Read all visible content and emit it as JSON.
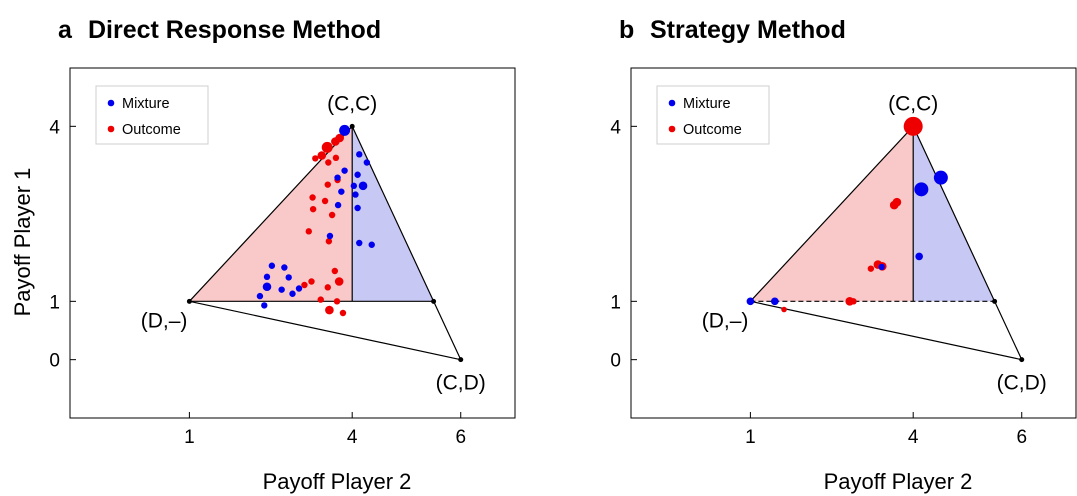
{
  "colors": {
    "mixture": "#0000ee",
    "outcome": "#ee0000",
    "mixture_fill": "#c8c8f4",
    "outcome_fill": "#f9c8c8",
    "frame": "#000000"
  },
  "chart_data": [
    {
      "type": "scatter",
      "panel_letter": "a",
      "title": "Direct Response Method",
      "xlabel": "Payoff Player 2",
      "ylabel": "Payoff Player 1",
      "xticks": [
        "1",
        "4",
        "6"
      ],
      "yticks": [
        "0",
        "1",
        "4"
      ],
      "xlim": [
        -1.2,
        7.0
      ],
      "ylim": [
        -1.0,
        5.0
      ],
      "legend": {
        "position": "top-left",
        "entries": [
          "Mixture",
          "Outcome"
        ]
      },
      "vertices": [
        {
          "label": "(C,C)",
          "x": 4,
          "y": 4
        },
        {
          "label": "(D,–)",
          "x": 1,
          "y": 1
        },
        {
          "label": "(C,D)",
          "x": 6,
          "y": 0
        }
      ],
      "series": [
        {
          "name": "Mixture",
          "points": [
            {
              "x": 3.86,
              "y": 3.93,
              "s": 5.5
            },
            {
              "x": 4.13,
              "y": 3.52,
              "s": 3.2
            },
            {
              "x": 4.27,
              "y": 3.38,
              "s": 3.2
            },
            {
              "x": 3.86,
              "y": 3.24,
              "s": 3.2
            },
            {
              "x": 4.1,
              "y": 3.17,
              "s": 3.2
            },
            {
              "x": 3.73,
              "y": 3.12,
              "s": 3.2
            },
            {
              "x": 4.03,
              "y": 2.98,
              "s": 3.2
            },
            {
              "x": 4.2,
              "y": 2.98,
              "s": 4.3
            },
            {
              "x": 3.8,
              "y": 2.88,
              "s": 3.2
            },
            {
              "x": 4.06,
              "y": 2.83,
              "s": 3.2
            },
            {
              "x": 3.74,
              "y": 2.65,
              "s": 3.2
            },
            {
              "x": 4.1,
              "y": 2.6,
              "s": 3.2
            },
            {
              "x": 3.59,
              "y": 2.12,
              "s": 3.2
            },
            {
              "x": 4.13,
              "y": 2.0,
              "s": 3.2
            },
            {
              "x": 4.36,
              "y": 1.97,
              "s": 3.2
            },
            {
              "x": 2.52,
              "y": 1.61,
              "s": 3.2
            },
            {
              "x": 2.75,
              "y": 1.58,
              "s": 3.2
            },
            {
              "x": 2.43,
              "y": 1.42,
              "s": 3.2
            },
            {
              "x": 2.83,
              "y": 1.41,
              "s": 3.2
            },
            {
              "x": 2.43,
              "y": 1.25,
              "s": 4.3
            },
            {
              "x": 3.02,
              "y": 1.22,
              "s": 3.2
            },
            {
              "x": 2.7,
              "y": 1.2,
              "s": 3.2
            },
            {
              "x": 2.9,
              "y": 1.13,
              "s": 3.2
            },
            {
              "x": 2.3,
              "y": 1.09,
              "s": 3.2
            },
            {
              "x": 2.38,
              "y": 0.93,
              "s": 3.2
            }
          ]
        },
        {
          "name": "Outcome",
          "points": [
            {
              "x": 3.77,
              "y": 3.8,
              "s": 4.3
            },
            {
              "x": 3.69,
              "y": 3.74,
              "s": 4.3
            },
            {
              "x": 3.54,
              "y": 3.64,
              "s": 5.5
            },
            {
              "x": 3.44,
              "y": 3.5,
              "s": 4.3
            },
            {
              "x": 3.7,
              "y": 3.46,
              "s": 3.2
            },
            {
              "x": 3.32,
              "y": 3.45,
              "s": 3.2
            },
            {
              "x": 3.56,
              "y": 3.38,
              "s": 3.2
            },
            {
              "x": 3.73,
              "y": 3.08,
              "s": 3.2
            },
            {
              "x": 3.55,
              "y": 3.0,
              "s": 3.2
            },
            {
              "x": 3.27,
              "y": 2.78,
              "s": 3.2
            },
            {
              "x": 3.5,
              "y": 2.72,
              "s": 3.2
            },
            {
              "x": 3.28,
              "y": 2.58,
              "s": 3.2
            },
            {
              "x": 3.63,
              "y": 2.48,
              "s": 3.2
            },
            {
              "x": 3.2,
              "y": 2.2,
              "s": 3.2
            },
            {
              "x": 3.57,
              "y": 2.03,
              "s": 3.2
            },
            {
              "x": 3.68,
              "y": 1.52,
              "s": 3.2
            },
            {
              "x": 3.25,
              "y": 1.34,
              "s": 3.2
            },
            {
              "x": 3.76,
              "y": 1.34,
              "s": 4.3
            },
            {
              "x": 3.12,
              "y": 1.28,
              "s": 3.2
            },
            {
              "x": 3.55,
              "y": 1.24,
              "s": 3.2
            },
            {
              "x": 3.42,
              "y": 1.03,
              "s": 3.2
            },
            {
              "x": 3.72,
              "y": 1.0,
              "s": 3.2
            },
            {
              "x": 3.58,
              "y": 0.85,
              "s": 4.3
            },
            {
              "x": 3.83,
              "y": 0.8,
              "s": 3.2
            }
          ]
        }
      ]
    },
    {
      "type": "scatter",
      "panel_letter": "b",
      "title": "Strategy Method",
      "xlabel": "Payoff Player 2",
      "ylabel": "",
      "xticks": [
        "1",
        "4",
        "6"
      ],
      "yticks": [
        "0",
        "1",
        "4"
      ],
      "xlim": [
        -1.2,
        7.0
      ],
      "ylim": [
        -1.0,
        5.0
      ],
      "legend": {
        "position": "top-left",
        "entries": [
          "Mixture",
          "Outcome"
        ]
      },
      "vertices": [
        {
          "label": "(C,C)",
          "x": 4,
          "y": 4
        },
        {
          "label": "(D,–)",
          "x": 1,
          "y": 1
        },
        {
          "label": "(C,D)",
          "x": 6,
          "y": 0
        }
      ],
      "series": [
        {
          "name": "Mixture",
          "points": [
            {
              "x": 4.51,
              "y": 3.12,
              "s": 7.0
            },
            {
              "x": 4.15,
              "y": 2.92,
              "s": 7.0
            },
            {
              "x": 4.11,
              "y": 1.77,
              "s": 3.8
            },
            {
              "x": 3.42,
              "y": 1.59,
              "s": 3.2
            },
            {
              "x": 1.45,
              "y": 1.0,
              "s": 3.8
            },
            {
              "x": 1.0,
              "y": 1.0,
              "s": 3.8
            }
          ]
        },
        {
          "name": "Outcome",
          "points": [
            {
              "x": 4.0,
              "y": 4.0,
              "s": 9.5
            },
            {
              "x": 3.7,
              "y": 2.7,
              "s": 4.3
            },
            {
              "x": 3.65,
              "y": 2.65,
              "s": 4.3
            },
            {
              "x": 3.35,
              "y": 1.63,
              "s": 4.3
            },
            {
              "x": 3.43,
              "y": 1.6,
              "s": 4.3
            },
            {
              "x": 3.22,
              "y": 1.56,
              "s": 3.2
            },
            {
              "x": 2.83,
              "y": 1.0,
              "s": 4.3
            },
            {
              "x": 2.9,
              "y": 1.0,
              "s": 3.2
            },
            {
              "x": 1.62,
              "y": 0.86,
              "s": 2.8
            }
          ]
        }
      ]
    }
  ]
}
